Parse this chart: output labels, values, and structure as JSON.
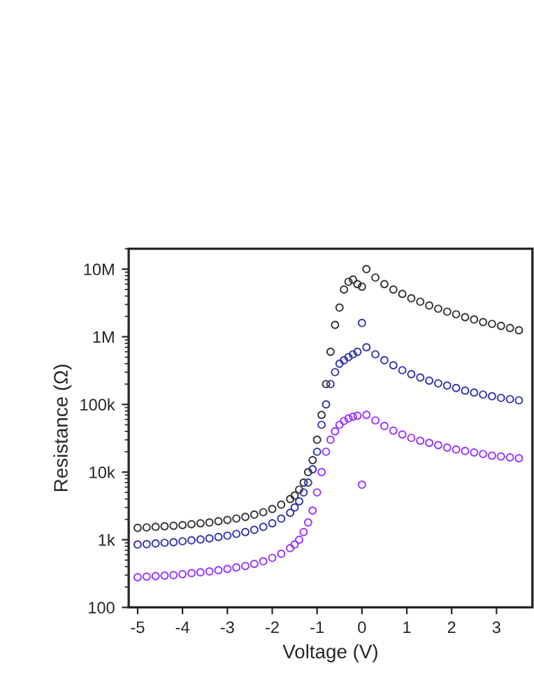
{
  "chart_data": {
    "type": "scatter",
    "xlabel": "Voltage (V)",
    "ylabel": "Resistance (Ω)",
    "log": "y",
    "marker": "circle",
    "grid": false,
    "legend": false,
    "xlim": [
      -5.2,
      3.8
    ],
    "xticks": [
      -5,
      -4,
      -3,
      -2,
      -1,
      0,
      1,
      2,
      3
    ],
    "ylim": [
      100,
      20000000
    ],
    "yticks": [
      {
        "value": 100,
        "label": "100"
      },
      {
        "value": 1000,
        "label": "1k"
      },
      {
        "value": 10000,
        "label": "10k"
      },
      {
        "value": 100000,
        "label": "100k"
      },
      {
        "value": 1000000,
        "label": "1M"
      },
      {
        "value": 10000000,
        "label": "10M"
      }
    ],
    "x": [
      -5,
      -4.8,
      -4.6,
      -4.4,
      -4.2,
      -4,
      -3.8,
      -3.6,
      -3.4,
      -3.2,
      -3,
      -2.8,
      -2.6,
      -2.4,
      -2.2,
      -2,
      -1.8,
      -1.6,
      -1.5,
      -1.4,
      -1.3,
      -1.2,
      -1.1,
      -1,
      -0.9,
      -0.8,
      -0.7,
      -0.6,
      -0.5,
      -0.4,
      -0.3,
      -0.2,
      -0.1,
      0,
      0.1,
      0.3,
      0.5,
      0.7,
      0.9,
      1.1,
      1.3,
      1.5,
      1.7,
      1.9,
      2.1,
      2.3,
      2.5,
      2.7,
      2.9,
      3.1,
      3.3,
      3.5
    ],
    "series": [
      {
        "color": "#333333",
        "values": [
          1500,
          1520,
          1550,
          1580,
          1610,
          1650,
          1700,
          1750,
          1800,
          1880,
          1960,
          2060,
          2180,
          2350,
          2550,
          2850,
          3300,
          4000,
          4500,
          5500,
          7000,
          10000,
          15000,
          30000,
          70000,
          200000,
          600000,
          1500000,
          2700000,
          5000000,
          6500000,
          7000000,
          6000000,
          5500000,
          10000000,
          7500000,
          6000000,
          5000000,
          4300000,
          3700000,
          3300000,
          2900000,
          2600000,
          2350000,
          2150000,
          1950000,
          1800000,
          1650000,
          1550000,
          1450000,
          1350000,
          1250000
        ]
      },
      {
        "color": "#3333aa",
        "values": [
          850,
          860,
          880,
          900,
          920,
          950,
          980,
          1010,
          1050,
          1100,
          1150,
          1220,
          1300,
          1400,
          1550,
          1750,
          2050,
          2500,
          3000,
          3700,
          5000,
          7000,
          11000,
          20000,
          50000,
          100000,
          200000,
          300000,
          400000,
          450000,
          500000,
          550000,
          600000,
          1600000,
          700000,
          550000,
          450000,
          380000,
          320000,
          280000,
          250000,
          225000,
          205000,
          190000,
          175000,
          160000,
          150000,
          140000,
          132000,
          125000,
          120000,
          115000
        ]
      },
      {
        "color": "#9933ff",
        "values": [
          280,
          285,
          290,
          295,
          300,
          310,
          320,
          330,
          340,
          355,
          370,
          390,
          410,
          440,
          480,
          540,
          620,
          750,
          850,
          1000,
          1300,
          1800,
          2700,
          5000,
          10000,
          20000,
          30000,
          40000,
          50000,
          57000,
          62000,
          66000,
          68000,
          6500,
          70000,
          58000,
          48000,
          41000,
          36000,
          32000,
          29000,
          27000,
          25000,
          23000,
          21500,
          20500,
          19500,
          18500,
          17500,
          17000,
          16500,
          16000
        ]
      }
    ]
  }
}
